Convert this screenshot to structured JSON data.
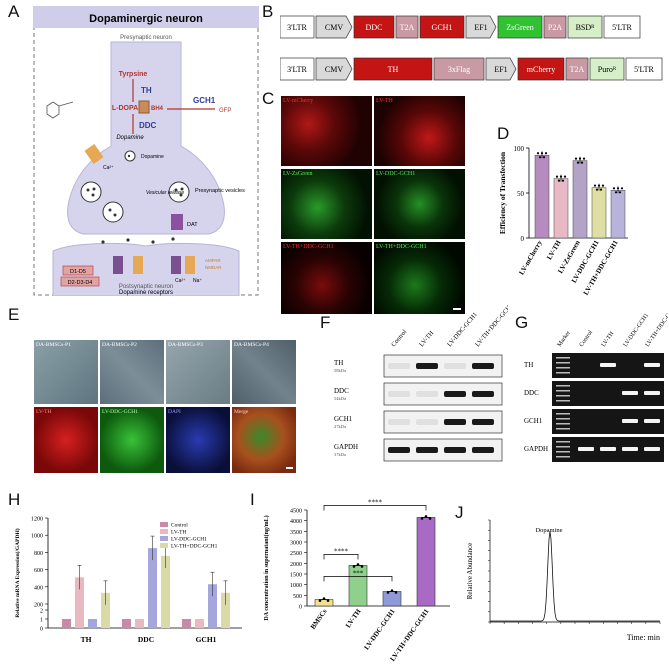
{
  "panel_letters": [
    "A",
    "B",
    "C",
    "D",
    "E",
    "F",
    "G",
    "H",
    "I",
    "J"
  ],
  "panelA": {
    "title": "Dopaminergic neuron",
    "presynaptic": "Presynaptic neuron",
    "postsynaptic": "Postsynaptic neuron",
    "tyrpsine": "Tyrpsine",
    "th": "TH",
    "ldopa": "L-DOPA",
    "bh4": "BH4",
    "gch1": "GCH1",
    "gfp": "GFP",
    "ddc": "DDC",
    "dopamine": "Dopamine",
    "dopamine2": "Dopamine",
    "ca": "Ca²⁺",
    "vesicular": "Vesicular release",
    "presyn_vesicles": "Presynaptic vesicles",
    "dat": "DAT",
    "d1d5": "D1-D5",
    "d2d3d4": "D2-D3-D4",
    "ampar": "AMPAR",
    "nmdar": "NMDAR",
    "ca2": "Ca²⁺",
    "na": "Na⁺",
    "receptors": "Dopamine receptors"
  },
  "panelB": {
    "row1": [
      "3'LTR",
      "CMV",
      "DDC",
      "T2A",
      "GCH1",
      "EF1",
      "ZsGreen",
      "P2A",
      "BSDᴿ",
      "5'LTR"
    ],
    "row2": [
      "3'LTR",
      "CMV",
      "TH",
      "3xFlag",
      "EF1",
      "mCherry",
      "T2A",
      "Puroᴿ",
      "5'LTR"
    ]
  },
  "panelC": {
    "labels": [
      "LV-mCherry",
      "LV-TH",
      "LV-ZsGreen",
      "LV-DDC-GCH1",
      "LV-TH+DDC-GCH1",
      "LV-TH+DDC-GCH1"
    ]
  },
  "panelD": {
    "ylabel": "Efficiency of Transfection",
    "chart_data": {
      "type": "bar",
      "categories": [
        "LV-mCherry",
        "LV-TH",
        "LV-ZsGreen",
        "LV-DDC-GCH1",
        "LV-TH+DDC-GCH1"
      ],
      "values": [
        92,
        66,
        86,
        56,
        53
      ],
      "colors": [
        "#b58bc0",
        "#e8b8c4",
        "#b2a3c7",
        "#dfdfa4",
        "#b7b3db"
      ],
      "yticks": [
        "0",
        "50",
        "100"
      ],
      "ylim": [
        0,
        100
      ]
    }
  },
  "panelE": {
    "top": [
      "DA-BMSCs-P1",
      "DA-BMSCs-P2",
      "DA-BMSCs-P3",
      "DA-BMSCs-P4"
    ],
    "bottom": [
      "LV-TH",
      "LV-DDC-GCH1",
      "DAPI",
      "Merge"
    ]
  },
  "panelF": {
    "lanes": [
      "Control",
      "LV-TH",
      "LV-DDC-GCH1",
      "LV-TH+DDC-GCH1"
    ],
    "rows": [
      {
        "name": "TH",
        "kda": "58kDa"
      },
      {
        "name": "DDC",
        "kda": "54kDa"
      },
      {
        "name": "GCH1",
        "kda": "27kDa"
      },
      {
        "name": "GAPDH",
        "kda": "37kDa"
      }
    ]
  },
  "panelG": {
    "lanes": [
      "Marker",
      "Control",
      "LV-TH",
      "LV-DDC-GCH1",
      "LV-TH+DDC-GCH1"
    ],
    "rows": [
      "TH",
      "DDC",
      "GCH1",
      "GAPDH"
    ]
  },
  "panelH": {
    "ylabel": "Relative mRNA Expression(/GAPDH)",
    "legend": [
      "Control",
      "LV-TH",
      "LV-DDC-GCH1",
      "LV-TH+DDC-GCH1"
    ],
    "chart_data": {
      "type": "bar",
      "categories": [
        "TH",
        "DDC",
        "GCH1"
      ],
      "series": [
        {
          "name": "Control",
          "values": [
            1,
            1,
            1
          ],
          "color": "#c88aa6"
        },
        {
          "name": "LV-TH",
          "values": [
            510,
            1,
            1
          ],
          "color": "#e9b9c3"
        },
        {
          "name": "LV-DDC-GCH1",
          "values": [
            1,
            850,
            430
          ],
          "color": "#a6a6df"
        },
        {
          "name": "LV-TH+DDC-GCH1",
          "values": [
            330,
            760,
            330
          ],
          "color": "#dadaa8"
        }
      ],
      "yticks": [
        "0",
        "1",
        "2",
        "200",
        "400",
        "600",
        "800",
        "1000",
        "1200"
      ]
    }
  },
  "panelI": {
    "ylabel": "DA concentration in supernatant(ng/mL)",
    "sig": [
      "****",
      "***",
      "****"
    ],
    "chart_data": {
      "type": "bar",
      "categories": [
        "BMSCs",
        "LV-TH",
        "LV-DDC-GCH1",
        "LV-TH+DDC-GCH1"
      ],
      "values": [
        300,
        1900,
        680,
        4150
      ],
      "colors": [
        "#f2e08c",
        "#8fd08c",
        "#8e9bd8",
        "#a86ac4"
      ],
      "yticks": [
        "0",
        "500",
        "1000",
        "1500",
        "2000",
        "2500",
        "3000",
        "3500",
        "4000",
        "4500"
      ],
      "ylim": [
        0,
        4500
      ]
    }
  },
  "panelJ": {
    "ylabel": "Relative Abundance",
    "xlabel": "Time: min",
    "peak": "Dopamine"
  }
}
